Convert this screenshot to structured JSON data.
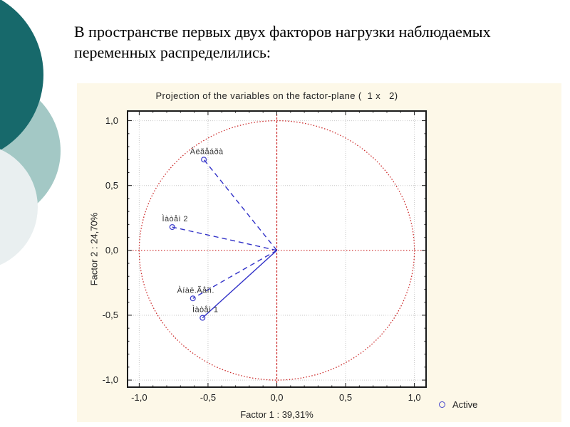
{
  "slide": {
    "title": "В пространстве первых двух факторов нагрузки наблюдаемых переменных распределились:"
  },
  "colors": {
    "teal_dark": "#17696b",
    "teal_light": "#a3c8c5",
    "pale_circle": "#e9eff0",
    "panel_bg": "#fdf8e8",
    "plot_bg": "#ffffff",
    "frame": "#1a1a1a",
    "grid": "#c9c9c9",
    "red": "#cc2a2a",
    "vector_blue": "#3232c8",
    "marker_blue": "#4444cc",
    "text": "#222222",
    "point_label": "#333333"
  },
  "chart_data": {
    "type": "scatter",
    "title": "Projection of the variables on the factor-plane (  1 x   2)",
    "xlabel": "Factor 1 : 39,31%",
    "ylabel": "Factor 2 : 24,70%",
    "xlim": [
      -1.09,
      1.09
    ],
    "ylim": [
      -1.06,
      1.08
    ],
    "grid": true,
    "unit_circle": true,
    "origin_crosshair": true,
    "minor_tick_step": 0.1,
    "x_ticks": [
      {
        "value": -1.0,
        "label": "-1,0"
      },
      {
        "value": -0.5,
        "label": "-0,5"
      },
      {
        "value": 0.0,
        "label": "0,0"
      },
      {
        "value": 0.5,
        "label": "0,5"
      },
      {
        "value": 1.0,
        "label": "1,0"
      }
    ],
    "y_ticks": [
      {
        "value": 1.0,
        "label": "1,0"
      },
      {
        "value": 0.5,
        "label": "0,5"
      },
      {
        "value": 0.0,
        "label": "0,0"
      },
      {
        "value": -0.5,
        "label": "-0,5"
      },
      {
        "value": -1.0,
        "label": "-1,0"
      }
    ],
    "points": [
      {
        "label": "Àëãåáðà",
        "x": -0.53,
        "y": 0.7,
        "vector": "dashed"
      },
      {
        "label": "Ìàòåì 2",
        "x": -0.76,
        "y": 0.18,
        "vector": "dashed"
      },
      {
        "label": "Àíàë.Ãåîì.",
        "x": -0.61,
        "y": -0.37,
        "vector": "dashed"
      },
      {
        "label": "Ìàòåì 1",
        "x": -0.54,
        "y": -0.52,
        "vector": "solid"
      }
    ],
    "legend": {
      "position": "bottom-right",
      "items": [
        {
          "label": "Active",
          "marker": "open-circle"
        }
      ]
    }
  }
}
